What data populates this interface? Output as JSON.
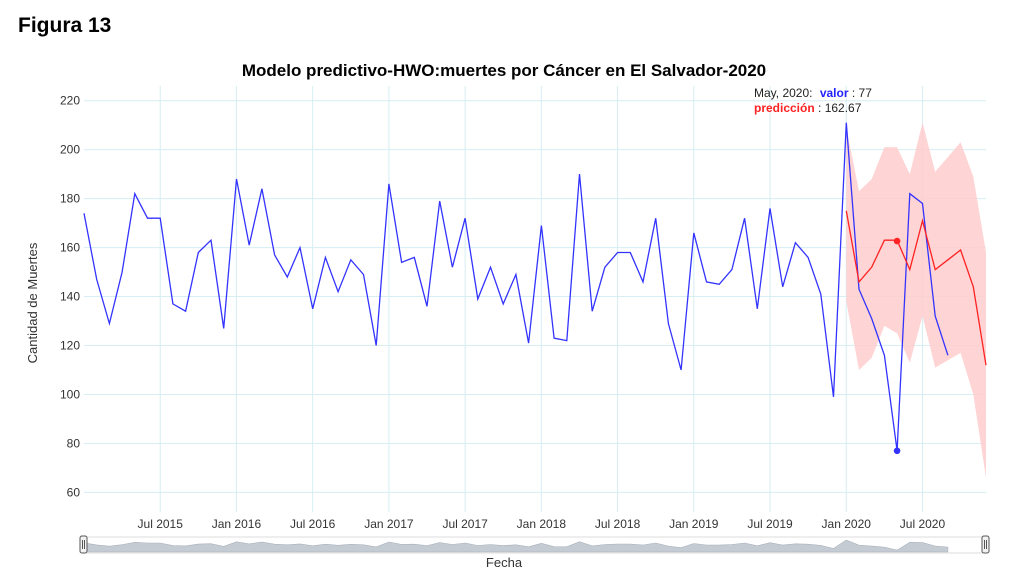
{
  "figure_label": "Figura 13",
  "colors": {
    "actual": "#3333ff",
    "prediction": "#ff2222",
    "band": "#ffcccc",
    "grid": "#d6eef4"
  },
  "tooltip": {
    "date": "May, 2020:",
    "valor_label": "valor",
    "valor_value": ": 77",
    "pred_label": "predicción",
    "pred_value": ": 162.67"
  },
  "chart_data": {
    "type": "line",
    "title": "Modelo predictivo-HWO:muertes por Cáncer en El Salvador-2020",
    "xlabel": "Fecha",
    "ylabel": "Cantidad de Muertes",
    "ylim": [
      52,
      226
    ],
    "y_ticks": [
      60,
      80,
      100,
      120,
      140,
      160,
      180,
      200,
      220
    ],
    "x_range": [
      "2015-01",
      "2020-12"
    ],
    "x_ticks": [
      {
        "date": "2015-07",
        "label": "Jul 2015"
      },
      {
        "date": "2016-01",
        "label": "Jan 2016"
      },
      {
        "date": "2016-07",
        "label": "Jul 2016"
      },
      {
        "date": "2017-01",
        "label": "Jan 2017"
      },
      {
        "date": "2017-07",
        "label": "Jul 2017"
      },
      {
        "date": "2018-01",
        "label": "Jan 2018"
      },
      {
        "date": "2018-07",
        "label": "Jul 2018"
      },
      {
        "date": "2019-01",
        "label": "Jan 2019"
      },
      {
        "date": "2019-07",
        "label": "Jul 2019"
      },
      {
        "date": "2020-01",
        "label": "Jan 2020"
      },
      {
        "date": "2020-07",
        "label": "Jul 2020"
      }
    ],
    "grid": true,
    "range_slider": true,
    "series": [
      {
        "start": "2015-01",
        "values": [
          174,
          147,
          129,
          150,
          182,
          172,
          172,
          137,
          134,
          158,
          163,
          127,
          188,
          161,
          184,
          157,
          148,
          160,
          135,
          156,
          142,
          155,
          149,
          120,
          186,
          154,
          156,
          136,
          179,
          152,
          172,
          139,
          152,
          137,
          149,
          121,
          169,
          123,
          122,
          190,
          134,
          152,
          158,
          158,
          146,
          172,
          129,
          110,
          166,
          146,
          145,
          151,
          172,
          135,
          176,
          144,
          162,
          156,
          141,
          99,
          211,
          143,
          131,
          116,
          77,
          182,
          178,
          132,
          116
        ]
      },
      {
        "start": "2020-01",
        "values": [
          175,
          146,
          152,
          163,
          163,
          151,
          171,
          151,
          155,
          159,
          144,
          112
        ]
      },
      {
        "start": "2020-01",
        "lower": [
          138,
          110,
          115,
          128,
          125,
          113,
          132,
          111,
          114,
          117,
          100,
          66
        ],
        "upper": [
          209,
          183,
          188,
          201,
          201,
          190,
          211,
          191,
          197,
          203,
          189,
          158
        ]
      }
    ],
    "highlight": {
      "date": "2020-05",
      "actual": 77,
      "prediction": 162.67
    }
  }
}
